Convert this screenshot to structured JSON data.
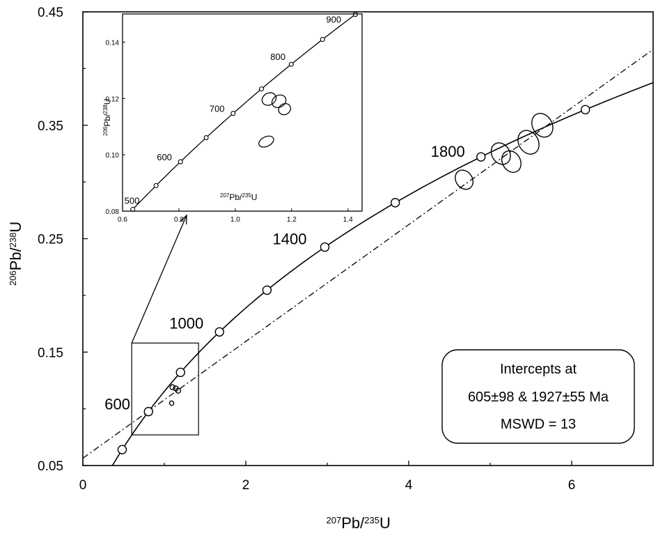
{
  "chart_data": [
    {
      "type": "scatter",
      "name": "main",
      "xlabel": {
        "sup": "207",
        "base": "Pb/",
        "sup2": "235",
        "base2": "U"
      },
      "ylabel": {
        "sup": "206",
        "base": "Pb/",
        "sup2": "238",
        "base2": "U"
      },
      "xlim": [
        0,
        7
      ],
      "ylim": [
        0.05,
        0.45
      ],
      "xticks": [
        0,
        2,
        4,
        6
      ],
      "yticks": [
        0.05,
        0.15,
        0.25,
        0.35,
        0.45
      ],
      "xtick_labels": [
        "0",
        "2",
        "4",
        "6"
      ],
      "ytick_labels": [
        "0.05",
        "0.15",
        "0.25",
        "0.35",
        "0.45"
      ],
      "concordia_ages_ma": [
        400,
        600,
        800,
        1000,
        1200,
        1400,
        1600,
        1800,
        2000
      ],
      "concordia_age_labels": [
        {
          "age": 600,
          "text": "600"
        },
        {
          "age": 1000,
          "text": "1000"
        },
        {
          "age": 1400,
          "text": "1400"
        },
        {
          "age": 1800,
          "text": "1800"
        }
      ],
      "discordia": {
        "lower_intercept_ma": 605,
        "upper_intercept_ma": 1927,
        "style": "dash-dot"
      },
      "ellipses": [
        {
          "x": 4.68,
          "y": 0.302,
          "rx": 0.1,
          "ry": 0.009,
          "angle": -35
        },
        {
          "x": 5.13,
          "y": 0.325,
          "rx": 0.11,
          "ry": 0.01,
          "angle": -30
        },
        {
          "x": 5.26,
          "y": 0.318,
          "rx": 0.11,
          "ry": 0.01,
          "angle": -30
        },
        {
          "x": 5.47,
          "y": 0.335,
          "rx": 0.12,
          "ry": 0.011,
          "angle": -30
        },
        {
          "x": 5.64,
          "y": 0.35,
          "rx": 0.12,
          "ry": 0.011,
          "angle": -30
        },
        {
          "x": 1.1,
          "y": 0.119,
          "rx": 0.03,
          "ry": 0.0022,
          "angle": -30
        },
        {
          "x": 1.14,
          "y": 0.118,
          "rx": 0.03,
          "ry": 0.0022,
          "angle": -30
        },
        {
          "x": 1.17,
          "y": 0.116,
          "rx": 0.03,
          "ry": 0.0022,
          "angle": -30
        },
        {
          "x": 1.09,
          "y": 0.105,
          "rx": 0.025,
          "ry": 0.002,
          "angle": -30
        }
      ],
      "annotation_box": {
        "lines": [
          "Intercepts at",
          "605±98 & 1927±55 Ma",
          "MSWD = 13"
        ]
      },
      "zoom_box": {
        "xlim": [
          0.6,
          1.42
        ],
        "ylim": [
          0.077,
          0.158
        ]
      }
    },
    {
      "type": "scatter",
      "name": "inset",
      "xlabel": {
        "sup": "207",
        "base": "Pb/",
        "sup2": "235",
        "base2": "U"
      },
      "ylabel": {
        "sup": "206",
        "base": "Pb/",
        "sup2": "238",
        "base2": "U"
      },
      "xlim": [
        0.6,
        1.45
      ],
      "ylim": [
        0.08,
        0.15
      ],
      "xticks": [
        0.6,
        0.8,
        1.0,
        1.2,
        1.4
      ],
      "yticks": [
        0.08,
        0.1,
        0.12,
        0.14
      ],
      "xtick_labels": [
        "0.6",
        "0.8",
        "1.0",
        "1.2",
        "1.4"
      ],
      "ytick_labels": [
        "0.08",
        "0.10",
        "0.12",
        "0.14"
      ],
      "concordia_ages_ma": [
        500,
        550,
        600,
        650,
        700,
        750,
        800,
        850,
        900
      ],
      "concordia_age_labels": [
        {
          "age": 500,
          "text": "500"
        },
        {
          "age": 600,
          "text": "600"
        },
        {
          "age": 700,
          "text": "700"
        },
        {
          "age": 800,
          "text": "800"
        },
        {
          "age": 900,
          "text": "900"
        }
      ],
      "ellipses": [
        {
          "x": 1.12,
          "y": 0.1198,
          "rx": 0.026,
          "ry": 0.0021,
          "angle": -30
        },
        {
          "x": 1.155,
          "y": 0.119,
          "rx": 0.026,
          "ry": 0.0021,
          "angle": -30
        },
        {
          "x": 1.175,
          "y": 0.1162,
          "rx": 0.022,
          "ry": 0.0019,
          "angle": -30
        },
        {
          "x": 1.11,
          "y": 0.1047,
          "rx": 0.028,
          "ry": 0.0017,
          "angle": -25
        }
      ]
    }
  ]
}
